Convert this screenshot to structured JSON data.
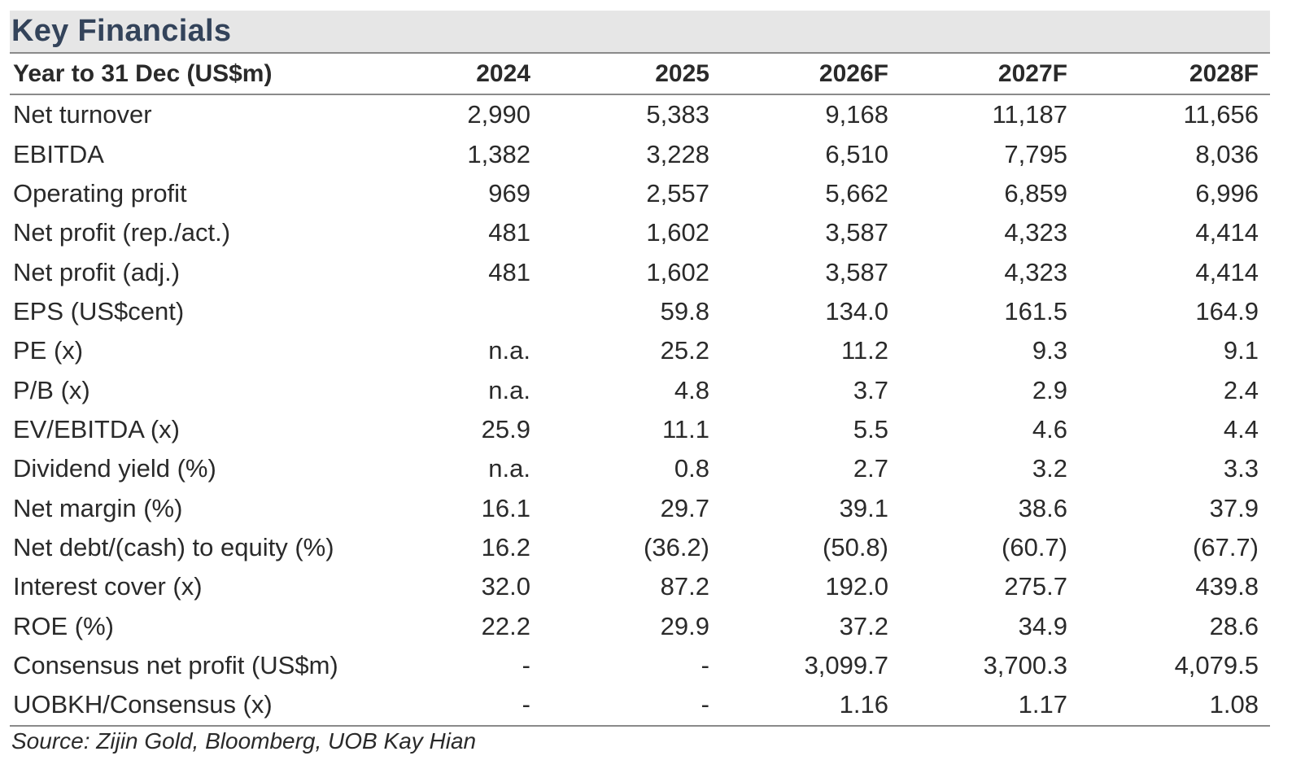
{
  "title": "Key Financials",
  "table": {
    "headers": [
      "Year to 31 Dec (US$m)",
      "2024",
      "2025",
      "2026F",
      "2027F",
      "2028F"
    ],
    "rows": [
      {
        "label": "Net turnover",
        "values": [
          "2,990",
          "5,383",
          "9,168",
          "11,187",
          "11,656"
        ]
      },
      {
        "label": "EBITDA",
        "values": [
          "1,382",
          "3,228",
          "6,510",
          "7,795",
          "8,036"
        ]
      },
      {
        "label": "Operating profit",
        "values": [
          "969",
          "2,557",
          "5,662",
          "6,859",
          "6,996"
        ]
      },
      {
        "label": "Net profit (rep./act.)",
        "values": [
          "481",
          "1,602",
          "3,587",
          "4,323",
          "4,414"
        ]
      },
      {
        "label": "Net profit (adj.)",
        "values": [
          "481",
          "1,602",
          "3,587",
          "4,323",
          "4,414"
        ]
      },
      {
        "label": "EPS (US$cent)",
        "values": [
          "",
          "59.8",
          "134.0",
          "161.5",
          "164.9"
        ]
      },
      {
        "label": "PE (x)",
        "values": [
          "n.a.",
          "25.2",
          "11.2",
          "9.3",
          "9.1"
        ]
      },
      {
        "label": "P/B (x)",
        "values": [
          "n.a.",
          "4.8",
          "3.7",
          "2.9",
          "2.4"
        ]
      },
      {
        "label": "EV/EBITDA (x)",
        "values": [
          "25.9",
          "11.1",
          "5.5",
          "4.6",
          "4.4"
        ]
      },
      {
        "label": "Dividend yield (%)",
        "values": [
          "n.a.",
          "0.8",
          "2.7",
          "3.2",
          "3.3"
        ]
      },
      {
        "label": "Net margin (%)",
        "values": [
          "16.1",
          "29.7",
          "39.1",
          "38.6",
          "37.9"
        ]
      },
      {
        "label": "Net debt/(cash) to equity (%)",
        "values": [
          "16.2",
          "(36.2)",
          "(50.8)",
          "(60.7)",
          "(67.7)"
        ]
      },
      {
        "label": "Interest cover (x)",
        "values": [
          "32.0",
          "87.2",
          "192.0",
          "275.7",
          "439.8"
        ]
      },
      {
        "label": "ROE (%)",
        "values": [
          "22.2",
          "29.9",
          "37.2",
          "34.9",
          "28.6"
        ]
      },
      {
        "label": "Consensus net profit (US$m)",
        "values": [
          "-",
          "-",
          "3,099.7",
          "3,700.3",
          "4,079.5"
        ]
      },
      {
        "label": "UOBKH/Consensus (x)",
        "values": [
          "-",
          "-",
          "1.16",
          "1.17",
          "1.08"
        ]
      }
    ]
  },
  "source": "Source: Zijin Gold, Bloomberg, UOB Kay Hian"
}
